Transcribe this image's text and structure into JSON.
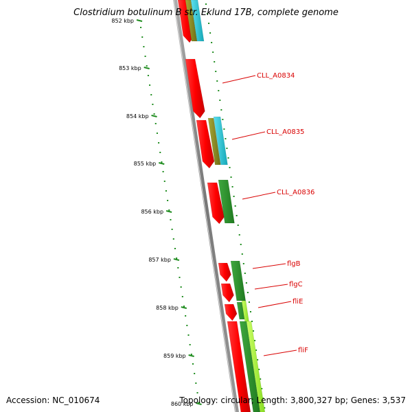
{
  "map": {
    "title": "Clostridium botulinum B str. Eklund 17B, complete genome",
    "accession": "Accession: NC_010674",
    "summary": "Topology: circular; Length: 3,800,327 bp; Genes: 3,537"
  },
  "ruler": {
    "ticks": [
      {
        "label": "852 kbp",
        "kbp": 852
      },
      {
        "label": "853 kbp",
        "kbp": 853
      },
      {
        "label": "854 kbp",
        "kbp": 854
      },
      {
        "label": "855 kbp",
        "kbp": 855
      },
      {
        "label": "856 kbp",
        "kbp": 856
      },
      {
        "label": "857 kbp",
        "kbp": 857
      },
      {
        "label": "858 kbp",
        "kbp": 858
      },
      {
        "label": "859 kbp",
        "kbp": 859
      },
      {
        "label": "860 kbp",
        "kbp": 860
      }
    ]
  },
  "genes": [
    {
      "label": "CLL_A0834"
    },
    {
      "label": "CLL_A0835"
    },
    {
      "label": "CLL_A0836"
    },
    {
      "label": "flgB"
    },
    {
      "label": "flgC"
    },
    {
      "label": "fliE"
    },
    {
      "label": "fliF"
    }
  ],
  "colors": {
    "cds": "#ff0000",
    "feature_dark_green": "#2e8b2e",
    "feature_olive": "#8b8b1e",
    "feature_cyan": "#20c8d8",
    "feature_yellow_green": "#aaff33",
    "backbone": "#888888",
    "ruler_green": "#1e8c1e",
    "label_red": "#d90000"
  }
}
